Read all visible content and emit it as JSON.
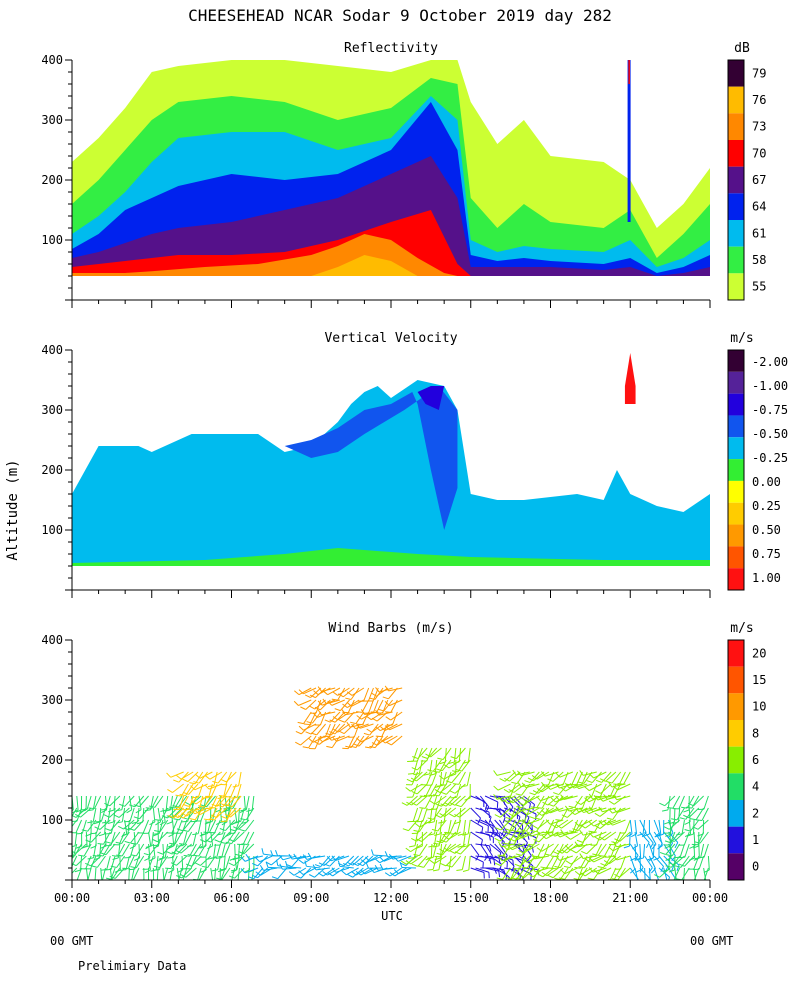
{
  "title": "CHEESEHEAD  NCAR Sodar   9 October 2019  day 282",
  "ylabel": "Altitude (m)",
  "xlabel": "UTC",
  "footer": {
    "left_gmt": "00 GMT",
    "right_gmt": "00 GMT",
    "note": "Prelimiary Data"
  },
  "chart_data": [
    {
      "type": "heatmap",
      "title": "Reflectivity",
      "units": "dB",
      "xlim": [
        0,
        24
      ],
      "ylim": [
        0,
        400
      ],
      "x_ticks": [
        "00:00",
        "03:00",
        "06:00",
        "09:00",
        "12:00",
        "15:00",
        "18:00",
        "21:00",
        "00:00"
      ],
      "y_ticks": [
        100,
        200,
        300,
        400
      ],
      "colorbar": {
        "labels": [
          "55",
          "58",
          "61",
          "64",
          "67",
          "70",
          "73",
          "76",
          "79"
        ],
        "colors": [
          "#ccff33",
          "#33ee44",
          "#00bbee",
          "#0022ee",
          "#55118a",
          "#ff0000",
          "#ff8800",
          "#ffbb00",
          "#330033"
        ]
      },
      "layers": [
        {
          "level": 55,
          "tops": [
            [
              0,
              230
            ],
            [
              1,
              270
            ],
            [
              2,
              320
            ],
            [
              3,
              380
            ],
            [
              4,
              390
            ],
            [
              6,
              400
            ],
            [
              8,
              400
            ],
            [
              10,
              390
            ],
            [
              12,
              380
            ],
            [
              13.5,
              400
            ],
            [
              14.5,
              400
            ],
            [
              15,
              330
            ],
            [
              16,
              260
            ],
            [
              17,
              300
            ],
            [
              18,
              240
            ],
            [
              20,
              230
            ],
            [
              21,
              200
            ],
            [
              22,
              120
            ],
            [
              23,
              160
            ],
            [
              24,
              220
            ]
          ]
        },
        {
          "level": 58,
          "tops": [
            [
              0,
              160
            ],
            [
              1,
              200
            ],
            [
              2,
              250
            ],
            [
              3,
              300
            ],
            [
              4,
              330
            ],
            [
              6,
              340
            ],
            [
              8,
              330
            ],
            [
              10,
              300
            ],
            [
              12,
              320
            ],
            [
              13.5,
              370
            ],
            [
              14.5,
              360
            ],
            [
              15,
              170
            ],
            [
              16,
              120
            ],
            [
              17,
              160
            ],
            [
              18,
              130
            ],
            [
              20,
              120
            ],
            [
              21,
              150
            ],
            [
              22,
              70
            ],
            [
              23,
              110
            ],
            [
              24,
              160
            ]
          ]
        },
        {
          "level": 61,
          "tops": [
            [
              0,
              110
            ],
            [
              1,
              140
            ],
            [
              2,
              180
            ],
            [
              3,
              230
            ],
            [
              4,
              270
            ],
            [
              6,
              280
            ],
            [
              8,
              280
            ],
            [
              10,
              250
            ],
            [
              12,
              270
            ],
            [
              13.5,
              340
            ],
            [
              14.5,
              300
            ],
            [
              15,
              100
            ],
            [
              16,
              80
            ],
            [
              17,
              90
            ],
            [
              18,
              85
            ],
            [
              20,
              80
            ],
            [
              21,
              100
            ],
            [
              22,
              55
            ],
            [
              23,
              70
            ],
            [
              24,
              100
            ]
          ]
        },
        {
          "level": 64,
          "tops": [
            [
              0,
              85
            ],
            [
              1,
              110
            ],
            [
              2,
              150
            ],
            [
              3,
              170
            ],
            [
              4,
              190
            ],
            [
              6,
              210
            ],
            [
              8,
              200
            ],
            [
              10,
              210
            ],
            [
              12,
              250
            ],
            [
              13.5,
              330
            ],
            [
              14.5,
              250
            ],
            [
              15,
              75
            ],
            [
              16,
              65
            ],
            [
              17,
              70
            ],
            [
              18,
              65
            ],
            [
              20,
              60
            ],
            [
              21,
              70
            ],
            [
              22,
              45
            ],
            [
              23,
              55
            ],
            [
              24,
              75
            ]
          ]
        },
        {
          "level": 67,
          "tops": [
            [
              0,
              70
            ],
            [
              1,
              80
            ],
            [
              2,
              95
            ],
            [
              3,
              110
            ],
            [
              4,
              120
            ],
            [
              6,
              130
            ],
            [
              8,
              150
            ],
            [
              10,
              170
            ],
            [
              12,
              210
            ],
            [
              13.5,
              240
            ],
            [
              14.5,
              170
            ],
            [
              15,
              55
            ],
            [
              16,
              55
            ],
            [
              17,
              55
            ],
            [
              18,
              55
            ],
            [
              20,
              50
            ],
            [
              21,
              55
            ],
            [
              22,
              40
            ],
            [
              23,
              45
            ],
            [
              24,
              55
            ]
          ]
        },
        {
          "level": 70,
          "tops": [
            [
              0,
              55
            ],
            [
              1,
              60
            ],
            [
              2,
              65
            ],
            [
              3,
              70
            ],
            [
              4,
              75
            ],
            [
              6,
              75
            ],
            [
              8,
              80
            ],
            [
              10,
              100
            ],
            [
              12,
              130
            ],
            [
              13.5,
              150
            ],
            [
              14.5,
              60
            ],
            [
              15,
              40
            ],
            [
              24,
              40
            ]
          ]
        },
        {
          "level": 73,
          "tops": [
            [
              0,
              45
            ],
            [
              2,
              45
            ],
            [
              3,
              48
            ],
            [
              5,
              55
            ],
            [
              7,
              60
            ],
            [
              9,
              75
            ],
            [
              10,
              90
            ],
            [
              11,
              110
            ],
            [
              12,
              100
            ],
            [
              13,
              70
            ],
            [
              14,
              45
            ],
            [
              14.5,
              40
            ],
            [
              24,
              40
            ]
          ]
        },
        {
          "level": 76,
          "tops": [
            [
              9,
              40
            ],
            [
              10,
              55
            ],
            [
              11,
              75
            ],
            [
              12,
              65
            ],
            [
              13,
              40
            ]
          ]
        }
      ]
    },
    {
      "type": "heatmap",
      "title": "Vertical Velocity",
      "units": "m/s",
      "xlim": [
        0,
        24
      ],
      "ylim": [
        0,
        400
      ],
      "x_ticks": [
        "00:00",
        "03:00",
        "06:00",
        "09:00",
        "12:00",
        "15:00",
        "18:00",
        "21:00",
        "00:00"
      ],
      "y_ticks": [
        100,
        200,
        300,
        400
      ],
      "colorbar": {
        "labels": [
          "1.00",
          "0.75",
          "0.50",
          "0.25",
          "0.00",
          "-0.25",
          "-0.50",
          "-0.75",
          "-1.00",
          "-2.00"
        ],
        "colors": [
          "#ff1111",
          "#ff5500",
          "#ff9900",
          "#ffcc00",
          "#ffff00",
          "#33ee33",
          "#00bbee",
          "#1155ee",
          "#2200dd",
          "#552299",
          "#330033"
        ]
      },
      "regions": [
        {
          "value": -0.25,
          "outline": [
            [
              0,
              40
            ],
            [
              0,
              160
            ],
            [
              0.5,
              200
            ],
            [
              1,
              240
            ],
            [
              2.5,
              240
            ],
            [
              3,
              230
            ],
            [
              4,
              250
            ],
            [
              4.5,
              260
            ],
            [
              7,
              260
            ],
            [
              8,
              230
            ],
            [
              9,
              240
            ],
            [
              9.5,
              260
            ],
            [
              10,
              280
            ],
            [
              10.5,
              310
            ],
            [
              11,
              330
            ],
            [
              11.5,
              340
            ],
            [
              12,
              320
            ],
            [
              13,
              350
            ],
            [
              14,
              340
            ],
            [
              14.5,
              300
            ],
            [
              15,
              160
            ],
            [
              16,
              150
            ],
            [
              17,
              150
            ],
            [
              19,
              160
            ],
            [
              20,
              150
            ],
            [
              20.5,
              200
            ],
            [
              21,
              160
            ],
            [
              22,
              140
            ],
            [
              23,
              130
            ],
            [
              24,
              160
            ],
            [
              24,
              40
            ]
          ]
        },
        {
          "value": -0.5,
          "outline": [
            [
              8,
              240
            ],
            [
              9,
              250
            ],
            [
              10,
              270
            ],
            [
              11,
              300
            ],
            [
              12,
              310
            ],
            [
              12.8,
              330
            ],
            [
              13,
              310
            ],
            [
              13.5,
              200
            ],
            [
              14,
              100
            ],
            [
              14.5,
              170
            ],
            [
              14.5,
              300
            ],
            [
              13.8,
              340
            ],
            [
              12.5,
              300
            ],
            [
              11,
              260
            ],
            [
              10,
              230
            ],
            [
              9,
              220
            ]
          ]
        },
        {
          "value": -0.75,
          "outline": [
            [
              13,
              330
            ],
            [
              13.5,
              340
            ],
            [
              14,
              340
            ],
            [
              13.8,
              300
            ],
            [
              13.3,
              310
            ]
          ]
        },
        {
          "value": 0.0,
          "outline": [
            [
              0,
              40
            ],
            [
              24,
              40
            ],
            [
              24,
              50
            ],
            [
              20,
              50
            ],
            [
              15,
              55
            ],
            [
              13,
              60
            ],
            [
              10,
              70
            ],
            [
              8,
              60
            ],
            [
              5,
              50
            ],
            [
              0,
              45
            ]
          ]
        },
        {
          "value": 1.0,
          "outline": [
            [
              20.8,
              340
            ],
            [
              21,
              395
            ],
            [
              21.2,
              340
            ],
            [
              21.2,
              310
            ],
            [
              20.8,
              310
            ]
          ]
        }
      ]
    },
    {
      "type": "scatter",
      "title": "Wind Barbs (m/s)",
      "units": "m/s",
      "xlim": [
        0,
        24
      ],
      "ylim": [
        0,
        400
      ],
      "x_ticks": [
        "00:00",
        "03:00",
        "06:00",
        "09:00",
        "12:00",
        "15:00",
        "18:00",
        "21:00",
        "00:00"
      ],
      "y_ticks": [
        100,
        200,
        300,
        400
      ],
      "colorbar": {
        "labels": [
          "0",
          "1",
          "2",
          "4",
          "6",
          "8",
          "10",
          "15",
          "20"
        ],
        "colors": [
          "#550066",
          "#2211dd",
          "#00aaee",
          "#22dd66",
          "#88ee00",
          "#ffcc00",
          "#ff9900",
          "#ff5500",
          "#ff1111"
        ]
      },
      "groups": [
        {
          "t_range": [
            0,
            7
          ],
          "alt_range": [
            20,
            140
          ],
          "speed": 4,
          "direction": 200
        },
        {
          "t_range": [
            4.2,
            6.5
          ],
          "alt_range": [
            120,
            180
          ],
          "speed": 8,
          "direction": 220
        },
        {
          "t_range": [
            7,
            13
          ],
          "alt_range": [
            20,
            40
          ],
          "speed": 2,
          "direction": 250
        },
        {
          "t_range": [
            9,
            12.5
          ],
          "alt_range": [
            240,
            330
          ],
          "speed": 10,
          "direction": 230
        },
        {
          "t_range": [
            13,
            15
          ],
          "alt_range": [
            40,
            220
          ],
          "speed": 6,
          "direction": 210
        },
        {
          "t_range": [
            15,
            17
          ],
          "alt_range": [
            20,
            140
          ],
          "speed": 1,
          "direction": 120
        },
        {
          "t_range": [
            16.5,
            21
          ],
          "alt_range": [
            20,
            180
          ],
          "speed": 6,
          "direction": 230
        },
        {
          "t_range": [
            21,
            22.5
          ],
          "alt_range": [
            20,
            110
          ],
          "speed": 2,
          "direction": 160
        },
        {
          "t_range": [
            22.5,
            24
          ],
          "alt_range": [
            20,
            150
          ],
          "speed": 4,
          "direction": 200
        }
      ]
    }
  ]
}
